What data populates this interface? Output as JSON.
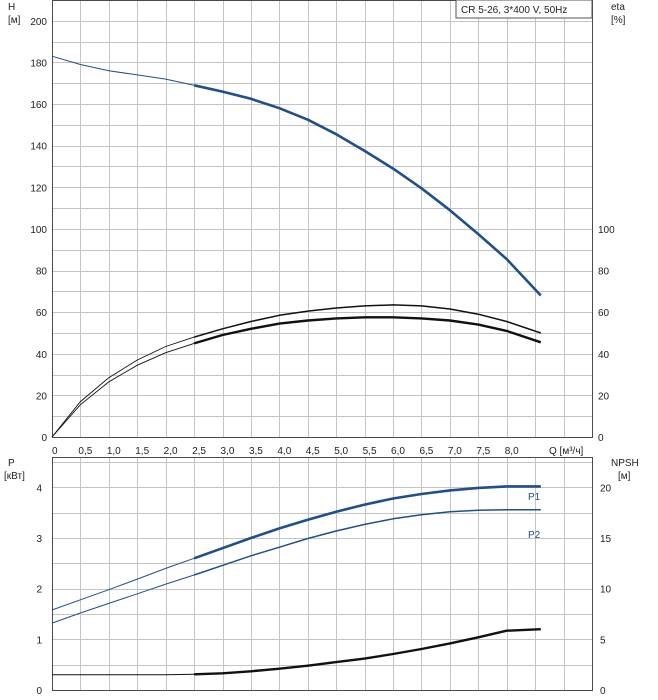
{
  "chart_data": [
    {
      "type": "line",
      "title": "CR 5-26, 3*400 V, 50Hz",
      "left_axis": {
        "label": "H",
        "unit": "[м]",
        "ylim": [
          0,
          210
        ],
        "ticks": [
          "0",
          "20",
          "40",
          "60",
          "80",
          "100",
          "120",
          "140",
          "160",
          "180",
          "200"
        ]
      },
      "right_axis": {
        "label": "eta",
        "unit": "[%]",
        "ylim": [
          0,
          210
        ],
        "ticks": [
          "0",
          "20",
          "40",
          "60",
          "80",
          "100"
        ]
      },
      "x_axis": {
        "label": "Q [м³/ч]",
        "xlim": [
          0,
          9.5
        ],
        "ticks": [
          "0",
          "0,5",
          "1,0",
          "1,5",
          "2,0",
          "2,5",
          "3,0",
          "3,5",
          "4,0",
          "4,5",
          "5,0",
          "5,5",
          "6,0",
          "6,5",
          "7,0",
          "7,5",
          "8,0"
        ]
      },
      "grid": true,
      "series": [
        {
          "axis": "left",
          "color": "#1f4f8c",
          "x": [
            0,
            0.5,
            1.0,
            1.5,
            2.0,
            2.5,
            3.0,
            3.5,
            4.0,
            4.5,
            5.0,
            5.5,
            6.0,
            6.5,
            7.0,
            7.5,
            8.0,
            8.6
          ],
          "y": [
            183,
            179,
            176,
            174,
            172,
            169,
            166,
            162.5,
            158,
            152.5,
            145.5,
            137.5,
            129,
            119.5,
            109,
            97.5,
            85.5,
            68
          ]
        },
        {
          "axis": "left",
          "color": "#111111",
          "x": [
            0,
            0.5,
            1.0,
            1.5,
            2.0,
            2.5,
            3.0,
            3.5,
            4.0,
            4.5,
            5.0,
            5.5,
            6.0,
            6.5,
            7.0,
            7.5,
            8.0,
            8.6
          ],
          "y": [
            0,
            17,
            28.5,
            37,
            43.5,
            48,
            52,
            55.5,
            58.5,
            60.5,
            62,
            63,
            63.5,
            63,
            61.5,
            59,
            55.5,
            50
          ]
        },
        {
          "axis": "left",
          "color": "#111111",
          "x": [
            0,
            0.5,
            1.0,
            1.5,
            2.0,
            2.5,
            3.0,
            3.5,
            4.0,
            4.5,
            5.0,
            5.5,
            6.0,
            6.5,
            7.0,
            7.5,
            8.0,
            8.6
          ],
          "y": [
            0,
            15.5,
            26.5,
            34.5,
            40.5,
            45,
            49,
            52,
            54.5,
            56,
            57,
            57.5,
            57.5,
            57,
            56,
            54,
            51,
            45.5
          ]
        }
      ]
    },
    {
      "type": "line",
      "left_axis": {
        "label": "P",
        "unit": "[кВт]",
        "ylim": [
          0,
          4.6
        ],
        "ticks": [
          "0",
          "1",
          "2",
          "3",
          "4"
        ]
      },
      "right_axis": {
        "label": "NPSH",
        "unit": "[м]",
        "ylim": [
          0,
          23
        ],
        "ticks": [
          "0",
          "5",
          "10",
          "15",
          "20"
        ]
      },
      "grid": true,
      "series": [
        {
          "name": "P1",
          "axis": "left",
          "color": "#1f4f8c",
          "x": [
            0,
            0.5,
            1.0,
            1.5,
            2.0,
            2.5,
            3.0,
            3.5,
            4.0,
            4.5,
            5.0,
            5.5,
            6.0,
            6.5,
            7.0,
            7.5,
            8.0,
            8.6
          ],
          "y": [
            1.58,
            1.78,
            1.98,
            2.19,
            2.4,
            2.6,
            2.8,
            3.0,
            3.19,
            3.36,
            3.52,
            3.66,
            3.78,
            3.87,
            3.94,
            3.99,
            4.02,
            4.02
          ]
        },
        {
          "name": "P2",
          "axis": "left",
          "color": "#1f4f8c",
          "x": [
            0,
            0.5,
            1.0,
            1.5,
            2.0,
            2.5,
            3.0,
            3.5,
            4.0,
            4.5,
            5.0,
            5.5,
            6.0,
            6.5,
            7.0,
            7.5,
            8.0,
            8.6
          ],
          "y": [
            1.32,
            1.52,
            1.71,
            1.9,
            2.09,
            2.27,
            2.46,
            2.65,
            2.82,
            2.99,
            3.14,
            3.27,
            3.38,
            3.46,
            3.52,
            3.55,
            3.56,
            3.56
          ]
        },
        {
          "axis": "right",
          "color": "#111111",
          "x": [
            0,
            0.5,
            1.0,
            1.5,
            2.0,
            2.5,
            3.0,
            3.5,
            4.0,
            4.5,
            5.0,
            5.5,
            6.0,
            6.5,
            7.0,
            7.5,
            8.0,
            8.6
          ],
          "y": [
            1.5,
            1.5,
            1.5,
            1.5,
            1.5,
            1.55,
            1.65,
            1.85,
            2.1,
            2.4,
            2.75,
            3.1,
            3.55,
            4.05,
            4.6,
            5.2,
            5.85,
            6.0
          ]
        }
      ]
    }
  ]
}
